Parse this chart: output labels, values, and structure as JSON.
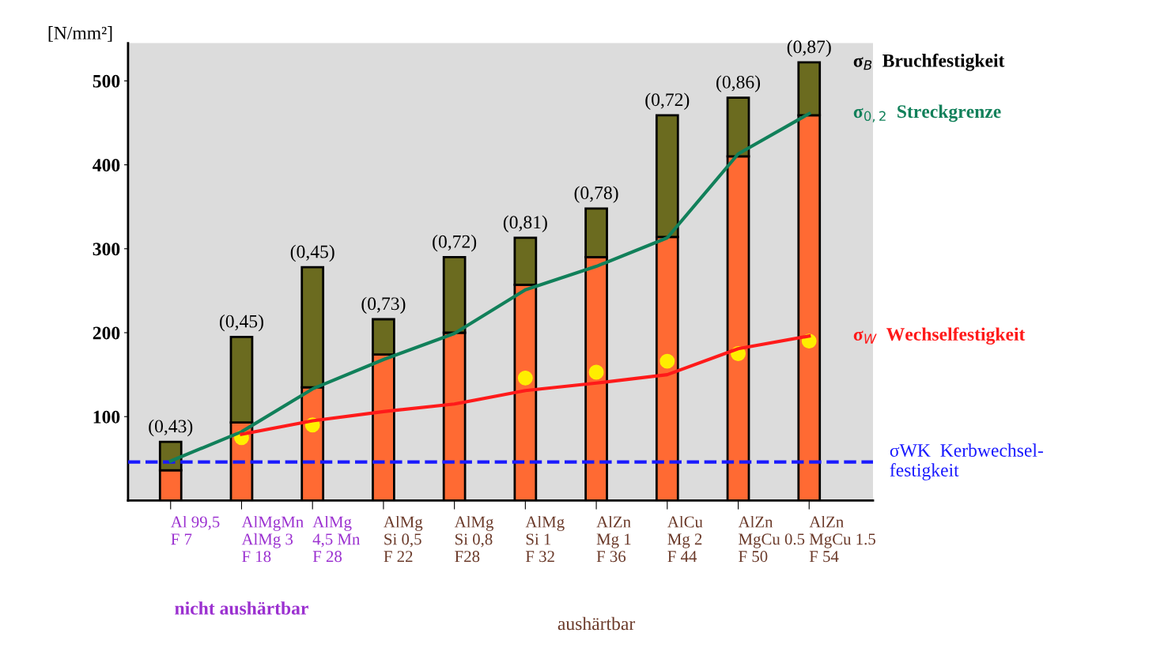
{
  "chart_data": {
    "type": "bar",
    "stacked": true,
    "ylabel": "[N/mm²]",
    "categories": [
      "Al 99,5\nF 7",
      "AlMgMn\nAlMg 3\nF 18",
      "AlMg\n4,5 Mn\nF 28",
      "AlMg\nSi 0,5\nF 22",
      "AlMg\nSi 0,8\nF28",
      "AlMg\nSi 1\nF 32",
      "AlZn\nMg 1\nF 36",
      "AlCu\nMg 2\nF 44",
      "AlZn\nMgCu 0.5\nF 50",
      "AlZn\nMgCu 1.5\nF 54"
    ],
    "series": [
      {
        "color": "#ff6a33",
        "values": [
          36,
          93,
          135,
          174,
          200,
          257,
          290,
          314,
          410,
          459
        ]
      },
      {
        "name": "σ$_{B}$  Bruchfestigkeit",
        "color": "#6b6b1f",
        "values": [
          34,
          102,
          143,
          42,
          90,
          56,
          58,
          145,
          70,
          63
        ]
      },
      {
        "type": "line",
        "name": "σ$_{0,2}$  Streckgrenze",
        "color": "#11805a",
        "values": [
          47,
          82,
          133,
          168,
          199,
          251,
          279,
          313,
          413,
          461
        ]
      },
      {
        "type": "line",
        "name": "σ$_{W}$  Wechselfestigkeit",
        "color": "#ff1a1a",
        "values": [
          null,
          79,
          95,
          106,
          115,
          131,
          140,
          150,
          181,
          196
        ]
      },
      {
        "type": "scatter",
        "color": "#ffee00",
        "marker": "circle",
        "values": [
          null,
          75,
          90,
          null,
          null,
          146,
          153,
          166,
          175,
          190
        ]
      }
    ],
    "ylim": [
      0,
      545
    ],
    "yticks": [
      100,
      200,
      300,
      400,
      500
    ],
    "grid": false,
    "ref_lines": [
      {
        "axis": "y",
        "value": 46,
        "label": "σWK  Kerbwechsel-\nfestigkeit",
        "color": "#1a1aff",
        "line_style": "dashed"
      }
    ],
    "annotations": [
      "(0,43)",
      "(0,45)",
      "(0,45)",
      "(0,73)",
      "(0,72)",
      "(0,81)",
      "(0,78)",
      "(0,72)",
      "(0,86)",
      "(0,87)",
      "nicht aushärtbar",
      "aushärtbar"
    ]
  }
}
